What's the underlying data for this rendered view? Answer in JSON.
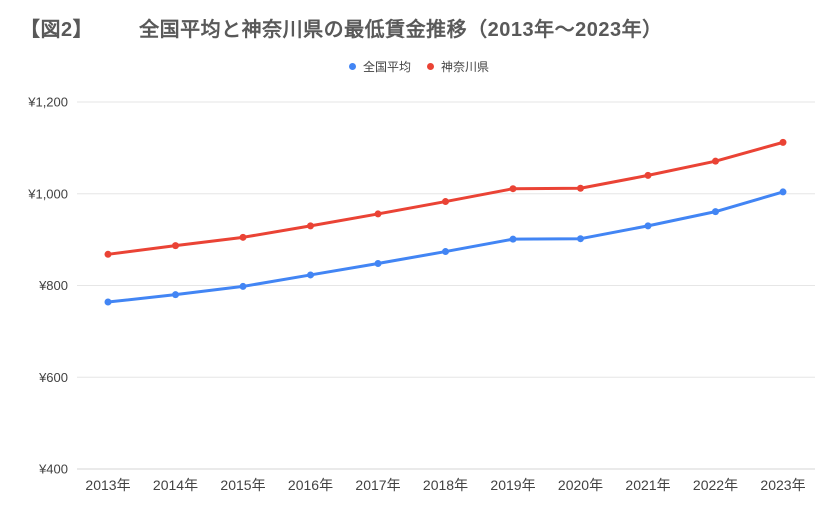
{
  "figure": {
    "tag": "【図2】",
    "title": "全国平均と神奈川県の最低賃金推移（2013年〜2023年）"
  },
  "colors": {
    "background": "#ffffff",
    "title_text": "#595959",
    "axis_text": "#424242",
    "gridline": "#e6e6e6",
    "baseline": "#d6d6d6"
  },
  "chart_data": {
    "type": "line",
    "title": "全国平均と神奈川県の最低賃金推移（2013年〜2023年）",
    "xlabel": "",
    "ylabel": "",
    "categories": [
      "2013年",
      "2014年",
      "2015年",
      "2016年",
      "2017年",
      "2018年",
      "2019年",
      "2020年",
      "2021年",
      "2022年",
      "2023年"
    ],
    "series": [
      {
        "key": "national-average",
        "name": "全国平均",
        "color": "#4285F4",
        "values": [
          764,
          780,
          798,
          823,
          848,
          874,
          901,
          902,
          930,
          961,
          1004
        ]
      },
      {
        "key": "kanagawa",
        "name": "神奈川県",
        "color": "#EA4335",
        "values": [
          868,
          887,
          905,
          930,
          956,
          983,
          1011,
          1012,
          1040,
          1071,
          1112
        ]
      }
    ],
    "ylim": [
      400,
      1200
    ],
    "yticks": [
      {
        "value": 400,
        "label": "¥400"
      },
      {
        "value": 600,
        "label": "¥600"
      },
      {
        "value": 800,
        "label": "¥800"
      },
      {
        "value": 1000,
        "label": "¥1,000"
      },
      {
        "value": 1200,
        "label": "¥1,200"
      }
    ],
    "grid": true,
    "legend_position": "top"
  }
}
